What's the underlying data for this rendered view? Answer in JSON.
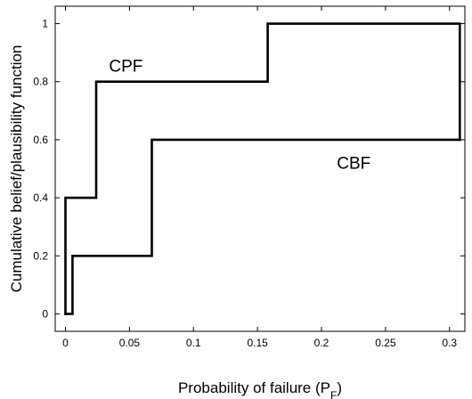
{
  "chart_data": {
    "type": "line",
    "title": "",
    "xlabel": "Probability of failure (P",
    "xlabel_sub": "F",
    "xlabel_close": ")",
    "ylabel": "Cumulative belief/plausibility function",
    "xlim": [
      -0.008,
      0.312
    ],
    "ylim": [
      -0.06,
      1.06
    ],
    "xticks": [
      0,
      0.05,
      0.1,
      0.15,
      0.2,
      0.25,
      0.3
    ],
    "xtick_labels": [
      "0",
      "0.05",
      "0.1",
      "0.15",
      "0.2",
      "0.25",
      "0.3"
    ],
    "yticks": [
      0,
      0.2,
      0.4,
      0.6,
      0.8,
      1
    ],
    "ytick_labels": [
      "0",
      "0.2",
      "0.4",
      "0.6",
      "0.8",
      "1"
    ],
    "grid": false,
    "legend": "none",
    "series": [
      {
        "name": "CPF",
        "x": [
          0,
          0,
          0.006,
          0.006,
          0.024,
          0.024,
          0.158,
          0.158,
          0.308,
          0.308
        ],
        "y": [
          0,
          0.4,
          0.4,
          0.4,
          0.4,
          0.8,
          0.8,
          1.0,
          1.0,
          0.6
        ]
      },
      {
        "name": "CBF",
        "x": [
          0,
          0.0055,
          0.0055,
          0.0675,
          0.0675,
          0.308
        ],
        "y": [
          0,
          0,
          0.2,
          0.2,
          0.6,
          0.6
        ]
      }
    ],
    "annotations": [
      {
        "text": "CPF",
        "x": 0.034,
        "y": 0.835
      },
      {
        "text": "CBF",
        "x": 0.212,
        "y": 0.5
      }
    ],
    "line_color": "#000000"
  }
}
